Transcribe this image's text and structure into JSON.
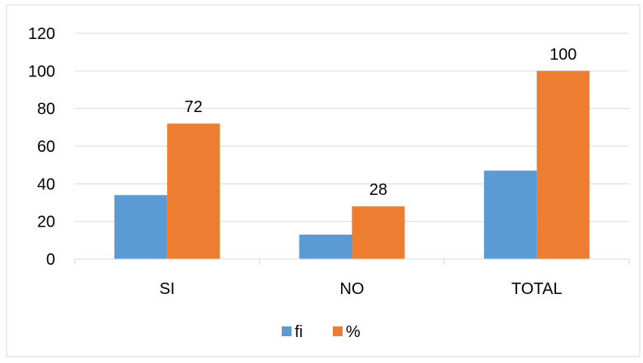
{
  "chart_data": {
    "type": "bar",
    "categories": [
      "SI",
      "NO",
      "TOTAL"
    ],
    "series": [
      {
        "name": "fi",
        "values": [
          34,
          13,
          47
        ],
        "color": "#5B9BD5"
      },
      {
        "name": "%",
        "values": [
          72,
          28,
          100
        ],
        "color": "#ED7D31"
      }
    ],
    "data_labels": {
      "series": "%",
      "values": [
        "72",
        "28",
        "100"
      ]
    },
    "ylim": [
      0,
      120
    ],
    "yticks": [
      "0",
      "20",
      "40",
      "60",
      "80",
      "100",
      "120"
    ],
    "grid": true,
    "legend_position": "bottom"
  }
}
